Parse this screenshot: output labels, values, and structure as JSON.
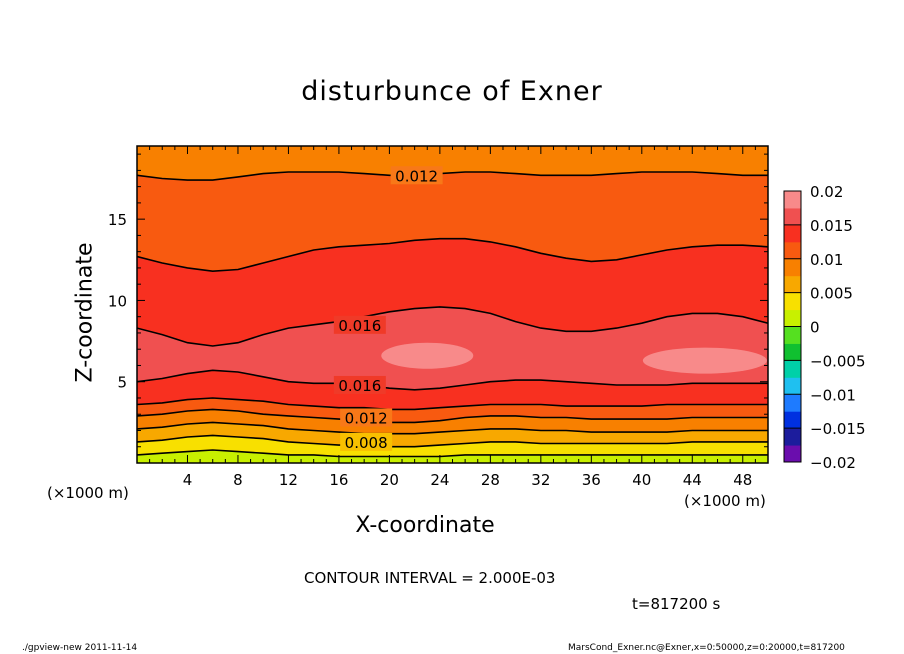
{
  "chart_data": {
    "type": "heatmap",
    "title": "disturbunce of Exner",
    "xlabel": "X-coordinate",
    "ylabel": "Z-coordinate",
    "x_unit": "(×1000 m)",
    "y_unit": "(×1000 m)",
    "xlim": [
      0,
      50
    ],
    "ylim": [
      0,
      19.5
    ],
    "x_ticks": [
      4,
      8,
      12,
      16,
      20,
      24,
      28,
      32,
      36,
      40,
      44,
      48
    ],
    "y_ticks": [
      5,
      10,
      15
    ],
    "colorbar": {
      "range": [
        -0.02,
        0.02
      ],
      "tick_labels": [
        "0.02",
        "0.015",
        "0.01",
        "0.005",
        "0",
        "−0.005",
        "−0.01",
        "−0.015",
        "−0.02"
      ],
      "colors": [
        "#6a0dad",
        "#1c1c9c",
        "#0030e0",
        "#1e7bff",
        "#1fc0f0",
        "#00d0a8",
        "#10c030",
        "#55e020",
        "#c8f000",
        "#f8e000",
        "#f8a800",
        "#f88000",
        "#f85a10",
        "#f83020",
        "#f05050",
        "#f88a8a"
      ]
    },
    "contour_interval_label": "CONTOUR INTERVAL = 2.000E-03",
    "time_label": "t=817200 s",
    "contour_labels": [
      {
        "text": "0.012",
        "level": 0.012,
        "x": 22,
        "z": 17.7
      },
      {
        "text": "0.016",
        "level": 0.016,
        "x": 17.5,
        "z": 8.5
      },
      {
        "text": "0.016",
        "level": 0.016,
        "x": 17.5,
        "z": 4.8
      },
      {
        "text": "0.012",
        "level": 0.012,
        "x": 18,
        "z": 2.8
      },
      {
        "text": "0.008",
        "level": 0.008,
        "x": 18,
        "z": 1.3
      }
    ],
    "contours": [
      {
        "level": 0.012,
        "z": [
          17.7,
          17.5,
          17.4,
          17.4,
          17.6,
          17.8,
          17.9,
          17.9,
          17.9,
          17.8,
          17.7,
          17.7,
          17.8,
          17.9,
          17.9,
          17.8,
          17.7,
          17.7,
          17.7,
          17.8,
          17.9,
          17.9,
          17.9,
          17.8,
          17.7,
          17.7
        ]
      },
      {
        "level": 0.014,
        "z": [
          12.7,
          12.3,
          12.0,
          11.8,
          11.9,
          12.3,
          12.7,
          13.1,
          13.3,
          13.4,
          13.5,
          13.7,
          13.8,
          13.8,
          13.6,
          13.3,
          12.9,
          12.6,
          12.4,
          12.5,
          12.8,
          13.1,
          13.3,
          13.4,
          13.4,
          13.3
        ]
      },
      {
        "level": 0.016,
        "z": [
          8.3,
          7.9,
          7.4,
          7.2,
          7.4,
          7.9,
          8.3,
          8.5,
          8.7,
          9.0,
          9.3,
          9.5,
          9.6,
          9.5,
          9.2,
          8.7,
          8.3,
          8.1,
          8.1,
          8.3,
          8.6,
          9.0,
          9.2,
          9.2,
          9.0,
          8.6
        ]
      },
      {
        "level": 0.016,
        "z": [
          5.0,
          5.2,
          5.5,
          5.7,
          5.6,
          5.3,
          5.0,
          4.9,
          4.9,
          4.8,
          4.6,
          4.5,
          4.6,
          4.8,
          5.0,
          5.1,
          5.1,
          5.0,
          4.9,
          4.8,
          4.8,
          4.8,
          4.9,
          4.9,
          4.9,
          4.9
        ]
      },
      {
        "level": 0.014,
        "z": [
          3.6,
          3.7,
          3.9,
          4.0,
          3.9,
          3.8,
          3.6,
          3.5,
          3.4,
          3.4,
          3.3,
          3.3,
          3.4,
          3.5,
          3.6,
          3.6,
          3.6,
          3.5,
          3.5,
          3.5,
          3.5,
          3.6,
          3.6,
          3.6,
          3.6,
          3.6
        ]
      },
      {
        "level": 0.012,
        "z": [
          2.9,
          3.0,
          3.2,
          3.3,
          3.2,
          3.0,
          2.9,
          2.8,
          2.7,
          2.6,
          2.5,
          2.5,
          2.6,
          2.8,
          2.9,
          2.9,
          2.8,
          2.8,
          2.7,
          2.7,
          2.7,
          2.7,
          2.8,
          2.8,
          2.8,
          2.8
        ]
      },
      {
        "level": 0.01,
        "z": [
          2.1,
          2.2,
          2.4,
          2.5,
          2.4,
          2.3,
          2.1,
          2.0,
          1.9,
          1.8,
          1.8,
          1.8,
          1.9,
          2.0,
          2.1,
          2.1,
          2.0,
          2.0,
          1.9,
          1.9,
          1.9,
          1.9,
          2.0,
          2.0,
          2.0,
          2.0
        ]
      },
      {
        "level": 0.008,
        "z": [
          1.3,
          1.4,
          1.6,
          1.7,
          1.6,
          1.5,
          1.3,
          1.2,
          1.1,
          1.1,
          1.0,
          1.0,
          1.1,
          1.2,
          1.3,
          1.3,
          1.2,
          1.2,
          1.2,
          1.2,
          1.2,
          1.2,
          1.3,
          1.3,
          1.3,
          1.3
        ]
      },
      {
        "level": 0.006,
        "z": [
          0.5,
          0.6,
          0.7,
          0.8,
          0.7,
          0.6,
          0.5,
          0.5,
          0.4,
          0.4,
          0.4,
          0.4,
          0.4,
          0.5,
          0.5,
          0.5,
          0.5,
          0.5,
          0.5,
          0.5,
          0.5,
          0.5,
          0.5,
          0.5,
          0.5,
          0.5
        ]
      }
    ],
    "bands": [
      {
        "color": "#f88a8a",
        "between": "high-pocket",
        "centers": [
          [
            23,
            6.6
          ],
          [
            45,
            6.3
          ]
        ]
      },
      {
        "color": "#f05050",
        "between": [
          2,
          3
        ]
      },
      {
        "color": "#f83020",
        "between": [
          1,
          2
        ]
      },
      {
        "color": "#f85a10",
        "between": [
          0,
          1
        ]
      },
      {
        "color": "#f88000",
        "between": [
          "top",
          0
        ]
      },
      {
        "color": "#f83020",
        "between": [
          3,
          4
        ]
      },
      {
        "color": "#f85a10",
        "between": [
          4,
          5
        ]
      },
      {
        "color": "#f88000",
        "between": [
          5,
          6
        ]
      },
      {
        "color": "#f8a800",
        "between": [
          6,
          7
        ]
      },
      {
        "color": "#f8e000",
        "between": [
          7,
          8
        ]
      },
      {
        "color": "#c8f000",
        "between": [
          8,
          "bottom"
        ]
      }
    ]
  },
  "footer": {
    "left": "./gpview-new   2011-11-14",
    "right": "MarsCond_Exner.nc@Exner,x=0:50000,z=0:20000,t=817200"
  }
}
